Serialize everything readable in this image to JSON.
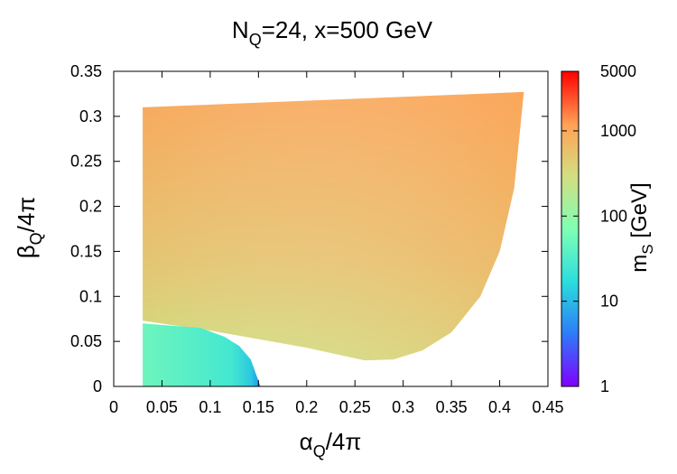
{
  "chart_data": {
    "type": "heatmap",
    "title": {
      "prefix": "N",
      "sub": "Q",
      "suffix": "=24, x=500 GeV"
    },
    "xlabel": {
      "greek": "α",
      "sub": "Q",
      "rest": "/4π"
    },
    "ylabel": {
      "greek": "β",
      "sub": "Q",
      "rest": "/4π"
    },
    "colorbar_label": {
      "main": "m",
      "sub": "S",
      "rest": " [GeV]"
    },
    "xlim": [
      0,
      0.45
    ],
    "ylim": [
      0,
      0.35
    ],
    "x_ticks": [
      "0",
      "0.05",
      "0.1",
      "0.15",
      "0.2",
      "0.25",
      "0.3",
      "0.35",
      "0.4",
      "0.45"
    ],
    "y_ticks": [
      "0",
      "0.05",
      "0.1",
      "0.15",
      "0.2",
      "0.25",
      "0.3",
      "0.35"
    ],
    "colorbar": {
      "scale": "log",
      "range": [
        1,
        5000
      ],
      "ticks": [
        "1",
        "10",
        "100",
        "1000",
        "5000"
      ],
      "colormap": [
        "#8000ff",
        "#2c7ef7",
        "#2adddd",
        "#80ffb4",
        "#d4dd80",
        "#ffa256",
        "#ff0000"
      ]
    },
    "regions": [
      {
        "name": "upper region",
        "x_range": [
          0.03,
          0.425
        ],
        "upper_boundary": [
          [
            0.03,
            0.31
          ],
          [
            0.425,
            0.327
          ]
        ],
        "lower_boundary": [
          [
            0.03,
            0.073
          ],
          [
            0.1,
            0.062
          ],
          [
            0.2,
            0.043
          ],
          [
            0.26,
            0.029
          ],
          [
            0.29,
            0.03
          ],
          [
            0.32,
            0.04
          ],
          [
            0.35,
            0.06
          ],
          [
            0.38,
            0.1
          ],
          [
            0.4,
            0.15
          ],
          [
            0.415,
            0.22
          ],
          [
            0.425,
            0.327
          ]
        ],
        "mass_range_GeV": [
          120,
          1300
        ]
      },
      {
        "name": "lower region",
        "x_range": [
          0.03,
          0.152
        ],
        "upper_boundary": [
          [
            0.03,
            0.07
          ],
          [
            0.09,
            0.065
          ]
        ],
        "outer_boundary": [
          [
            0.09,
            0.065
          ],
          [
            0.115,
            0.055
          ],
          [
            0.13,
            0.045
          ],
          [
            0.142,
            0.03
          ],
          [
            0.152,
            0.0
          ]
        ],
        "mass_range_GeV": [
          20,
          60
        ]
      }
    ]
  }
}
